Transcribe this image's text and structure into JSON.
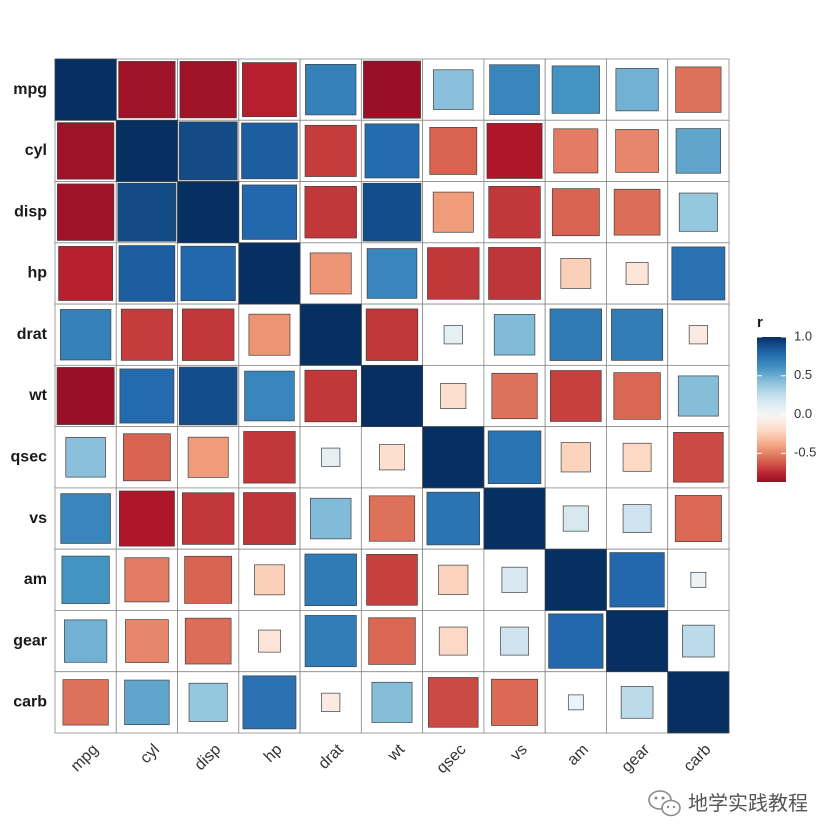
{
  "chart_data": {
    "type": "heatmap",
    "variables": [
      "mpg",
      "cyl",
      "disp",
      "hp",
      "drat",
      "wt",
      "qsec",
      "vs",
      "am",
      "gear",
      "carb"
    ],
    "matrix": [
      [
        1.0,
        -0.85,
        -0.85,
        -0.78,
        0.68,
        -0.87,
        0.42,
        0.66,
        0.6,
        0.48,
        -0.55
      ],
      [
        -0.85,
        1.0,
        0.9,
        0.83,
        -0.7,
        0.78,
        -0.59,
        -0.81,
        -0.52,
        -0.49,
        0.53
      ],
      [
        -0.85,
        0.9,
        1.0,
        0.79,
        -0.71,
        0.89,
        -0.43,
        -0.71,
        -0.59,
        -0.56,
        0.39
      ],
      [
        -0.78,
        0.83,
        0.79,
        1.0,
        -0.45,
        0.66,
        -0.71,
        -0.72,
        -0.24,
        -0.13,
        0.75
      ],
      [
        0.68,
        -0.7,
        -0.71,
        -0.45,
        1.0,
        -0.71,
        0.09,
        0.44,
        0.71,
        0.7,
        -0.09
      ],
      [
        -0.87,
        0.78,
        0.89,
        0.66,
        -0.71,
        1.0,
        -0.17,
        -0.55,
        -0.69,
        -0.58,
        0.43
      ],
      [
        0.42,
        -0.59,
        -0.43,
        -0.71,
        0.09,
        -0.17,
        1.0,
        0.74,
        -0.23,
        -0.21,
        -0.66
      ],
      [
        0.66,
        -0.81,
        -0.71,
        -0.72,
        0.44,
        -0.55,
        0.74,
        1.0,
        0.17,
        0.21,
        -0.57
      ],
      [
        0.6,
        -0.52,
        -0.59,
        -0.24,
        0.71,
        -0.69,
        -0.23,
        0.17,
        1.0,
        0.79,
        0.06
      ],
      [
        0.48,
        -0.49,
        -0.56,
        -0.13,
        0.7,
        -0.58,
        -0.21,
        0.21,
        0.79,
        1.0,
        0.27
      ],
      [
        -0.55,
        0.53,
        0.39,
        0.75,
        -0.09,
        0.43,
        -0.66,
        -0.57,
        0.06,
        0.27,
        1.0
      ]
    ],
    "legend": {
      "title": "r",
      "ticks": [
        {
          "value": 1.0,
          "label": "1.0"
        },
        {
          "value": 0.5,
          "label": "0.5"
        },
        {
          "value": 0.0,
          "label": "0.0"
        },
        {
          "value": -0.5,
          "label": "-0.5"
        }
      ],
      "range": [
        -0.87,
        1.0
      ],
      "position": "right"
    },
    "colors": {
      "negative_strong": "#67001f",
      "negative": "#b2182b",
      "negative_mid": "#d6604d",
      "negative_light": "#f4a582",
      "negative_pale": "#fddbc7",
      "neutral": "#f7f7f7",
      "positive_pale": "#d1e5f0",
      "positive_light": "#92c5de",
      "positive_mid": "#4393c3",
      "positive": "#2166ac",
      "positive_strong": "#053061",
      "grid": "#8a8a8a",
      "square_border": "#404040"
    },
    "grid": true
  },
  "watermark": {
    "text": "地学实践教程",
    "icon": "wechat-icon"
  }
}
